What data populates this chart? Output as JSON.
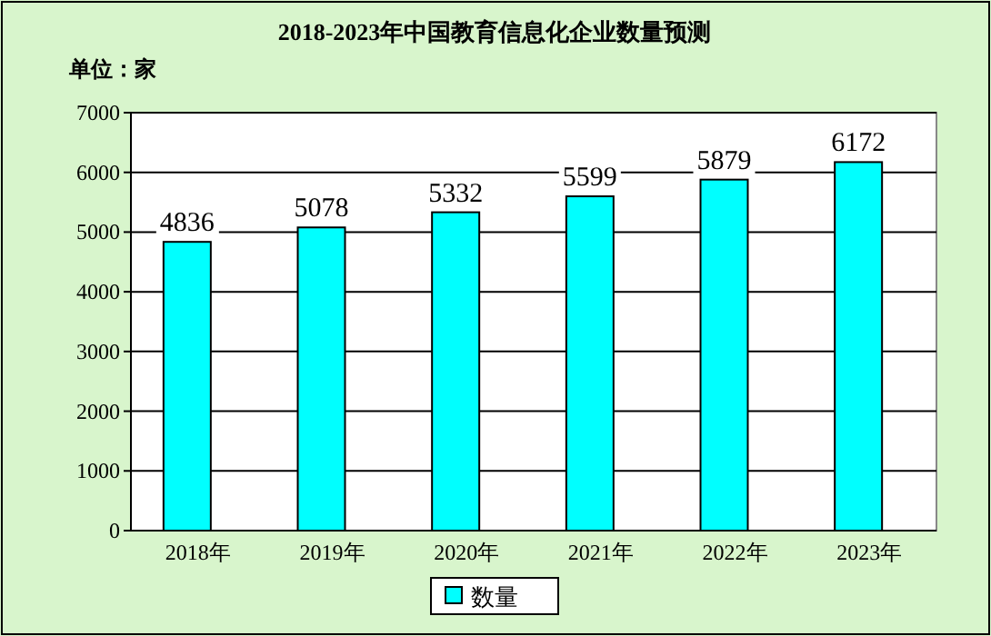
{
  "chart_data": {
    "type": "bar",
    "title": "2018-2023年中国教育信息化企业数量预测",
    "annotations": [
      "单位：家"
    ],
    "categories": [
      "2018年",
      "2019年",
      "2020年",
      "2021年",
      "2022年",
      "2023年"
    ],
    "series": [
      {
        "name": "数量",
        "color": "#00ffff",
        "values": [
          4836,
          5078,
          5332,
          5599,
          5879,
          6172
        ]
      }
    ],
    "ylim": [
      0,
      7000
    ],
    "yticks": [
      0,
      1000,
      2000,
      3000,
      4000,
      5000,
      6000,
      7000
    ],
    "grid": "y",
    "legend": "bottom",
    "data_labels": true
  }
}
